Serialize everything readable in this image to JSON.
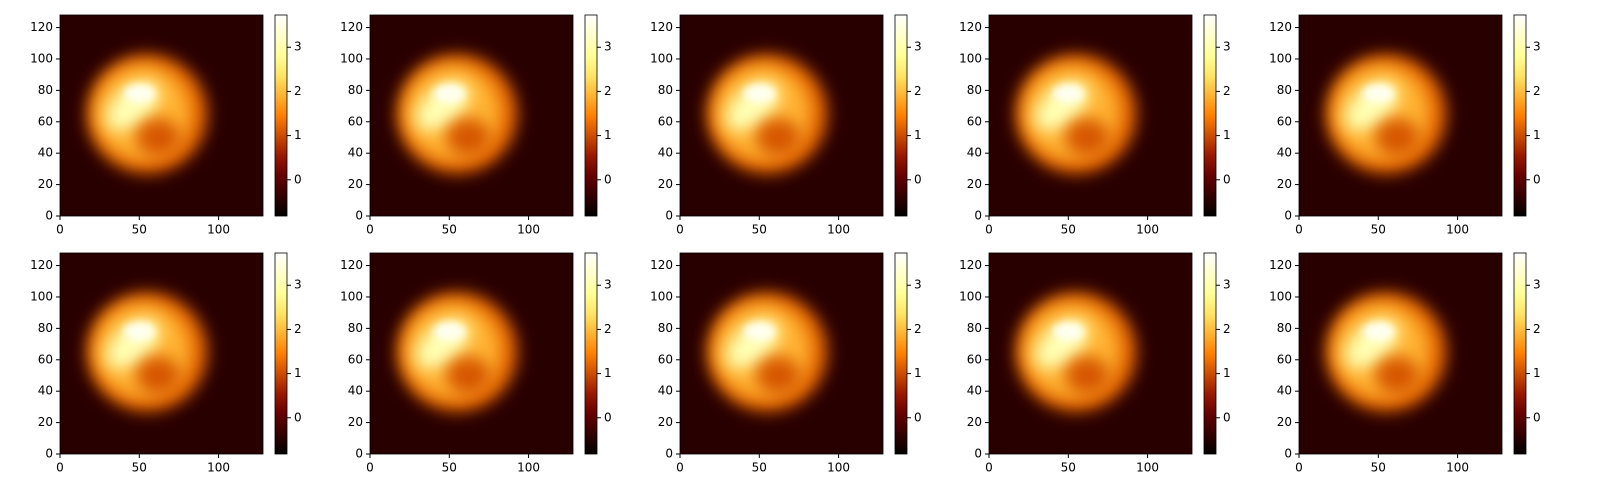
{
  "chart_data": [
    {
      "type": "heatmap",
      "xlim": [
        0,
        128
      ],
      "ylim": [
        0,
        128
      ],
      "xticks": [
        0,
        50,
        100
      ],
      "yticks": [
        0,
        20,
        40,
        60,
        80,
        100,
        120
      ],
      "cmap": "afmhot",
      "clim": [
        -0.82,
        3.73
      ],
      "cticks": [
        0,
        1,
        2,
        3
      ]
    },
    {
      "type": "heatmap",
      "xlim": [
        0,
        128
      ],
      "ylim": [
        0,
        128
      ],
      "xticks": [
        0,
        50,
        100
      ],
      "yticks": [
        0,
        20,
        40,
        60,
        80,
        100,
        120
      ],
      "cmap": "afmhot",
      "clim": [
        -0.82,
        3.73
      ],
      "cticks": [
        0,
        1,
        2,
        3
      ]
    },
    {
      "type": "heatmap",
      "xlim": [
        0,
        128
      ],
      "ylim": [
        0,
        128
      ],
      "xticks": [
        0,
        50,
        100
      ],
      "yticks": [
        0,
        20,
        40,
        60,
        80,
        100,
        120
      ],
      "cmap": "afmhot",
      "clim": [
        -0.82,
        3.73
      ],
      "cticks": [
        0,
        1,
        2,
        3
      ]
    },
    {
      "type": "heatmap",
      "xlim": [
        0,
        128
      ],
      "ylim": [
        0,
        128
      ],
      "xticks": [
        0,
        50,
        100
      ],
      "yticks": [
        0,
        20,
        40,
        60,
        80,
        100,
        120
      ],
      "cmap": "afmhot",
      "clim": [
        -0.82,
        3.73
      ],
      "cticks": [
        0,
        1,
        2,
        3
      ]
    },
    {
      "type": "heatmap",
      "xlim": [
        0,
        128
      ],
      "ylim": [
        0,
        128
      ],
      "xticks": [
        0,
        50,
        100
      ],
      "yticks": [
        0,
        20,
        40,
        60,
        80,
        100,
        120
      ],
      "cmap": "afmhot",
      "clim": [
        -0.82,
        3.73
      ],
      "cticks": [
        0,
        1,
        2,
        3
      ]
    },
    {
      "type": "heatmap",
      "xlim": [
        0,
        128
      ],
      "ylim": [
        0,
        128
      ],
      "xticks": [
        0,
        50,
        100
      ],
      "yticks": [
        0,
        20,
        40,
        60,
        80,
        100,
        120
      ],
      "cmap": "afmhot",
      "clim": [
        -0.82,
        3.73
      ],
      "cticks": [
        0,
        1,
        2,
        3
      ]
    },
    {
      "type": "heatmap",
      "xlim": [
        0,
        128
      ],
      "ylim": [
        0,
        128
      ],
      "xticks": [
        0,
        50,
        100
      ],
      "yticks": [
        0,
        20,
        40,
        60,
        80,
        100,
        120
      ],
      "cmap": "afmhot",
      "clim": [
        -0.82,
        3.73
      ],
      "cticks": [
        0,
        1,
        2,
        3
      ]
    },
    {
      "type": "heatmap",
      "xlim": [
        0,
        128
      ],
      "ylim": [
        0,
        128
      ],
      "xticks": [
        0,
        50,
        100
      ],
      "yticks": [
        0,
        20,
        40,
        60,
        80,
        100,
        120
      ],
      "cmap": "afmhot",
      "clim": [
        -0.82,
        3.73
      ],
      "cticks": [
        0,
        1,
        2,
        3
      ]
    },
    {
      "type": "heatmap",
      "xlim": [
        0,
        128
      ],
      "ylim": [
        0,
        128
      ],
      "xticks": [
        0,
        50,
        100
      ],
      "yticks": [
        0,
        20,
        40,
        60,
        80,
        100,
        120
      ],
      "cmap": "afmhot",
      "clim": [
        -0.82,
        3.73
      ],
      "cticks": [
        0,
        1,
        2,
        3
      ]
    },
    {
      "type": "heatmap",
      "xlim": [
        0,
        128
      ],
      "ylim": [
        0,
        128
      ],
      "xticks": [
        0,
        50,
        100
      ],
      "yticks": [
        0,
        20,
        40,
        60,
        80,
        100,
        120
      ],
      "cmap": "afmhot",
      "clim": [
        -0.82,
        3.73
      ],
      "cticks": [
        0,
        1,
        2,
        3
      ]
    }
  ]
}
